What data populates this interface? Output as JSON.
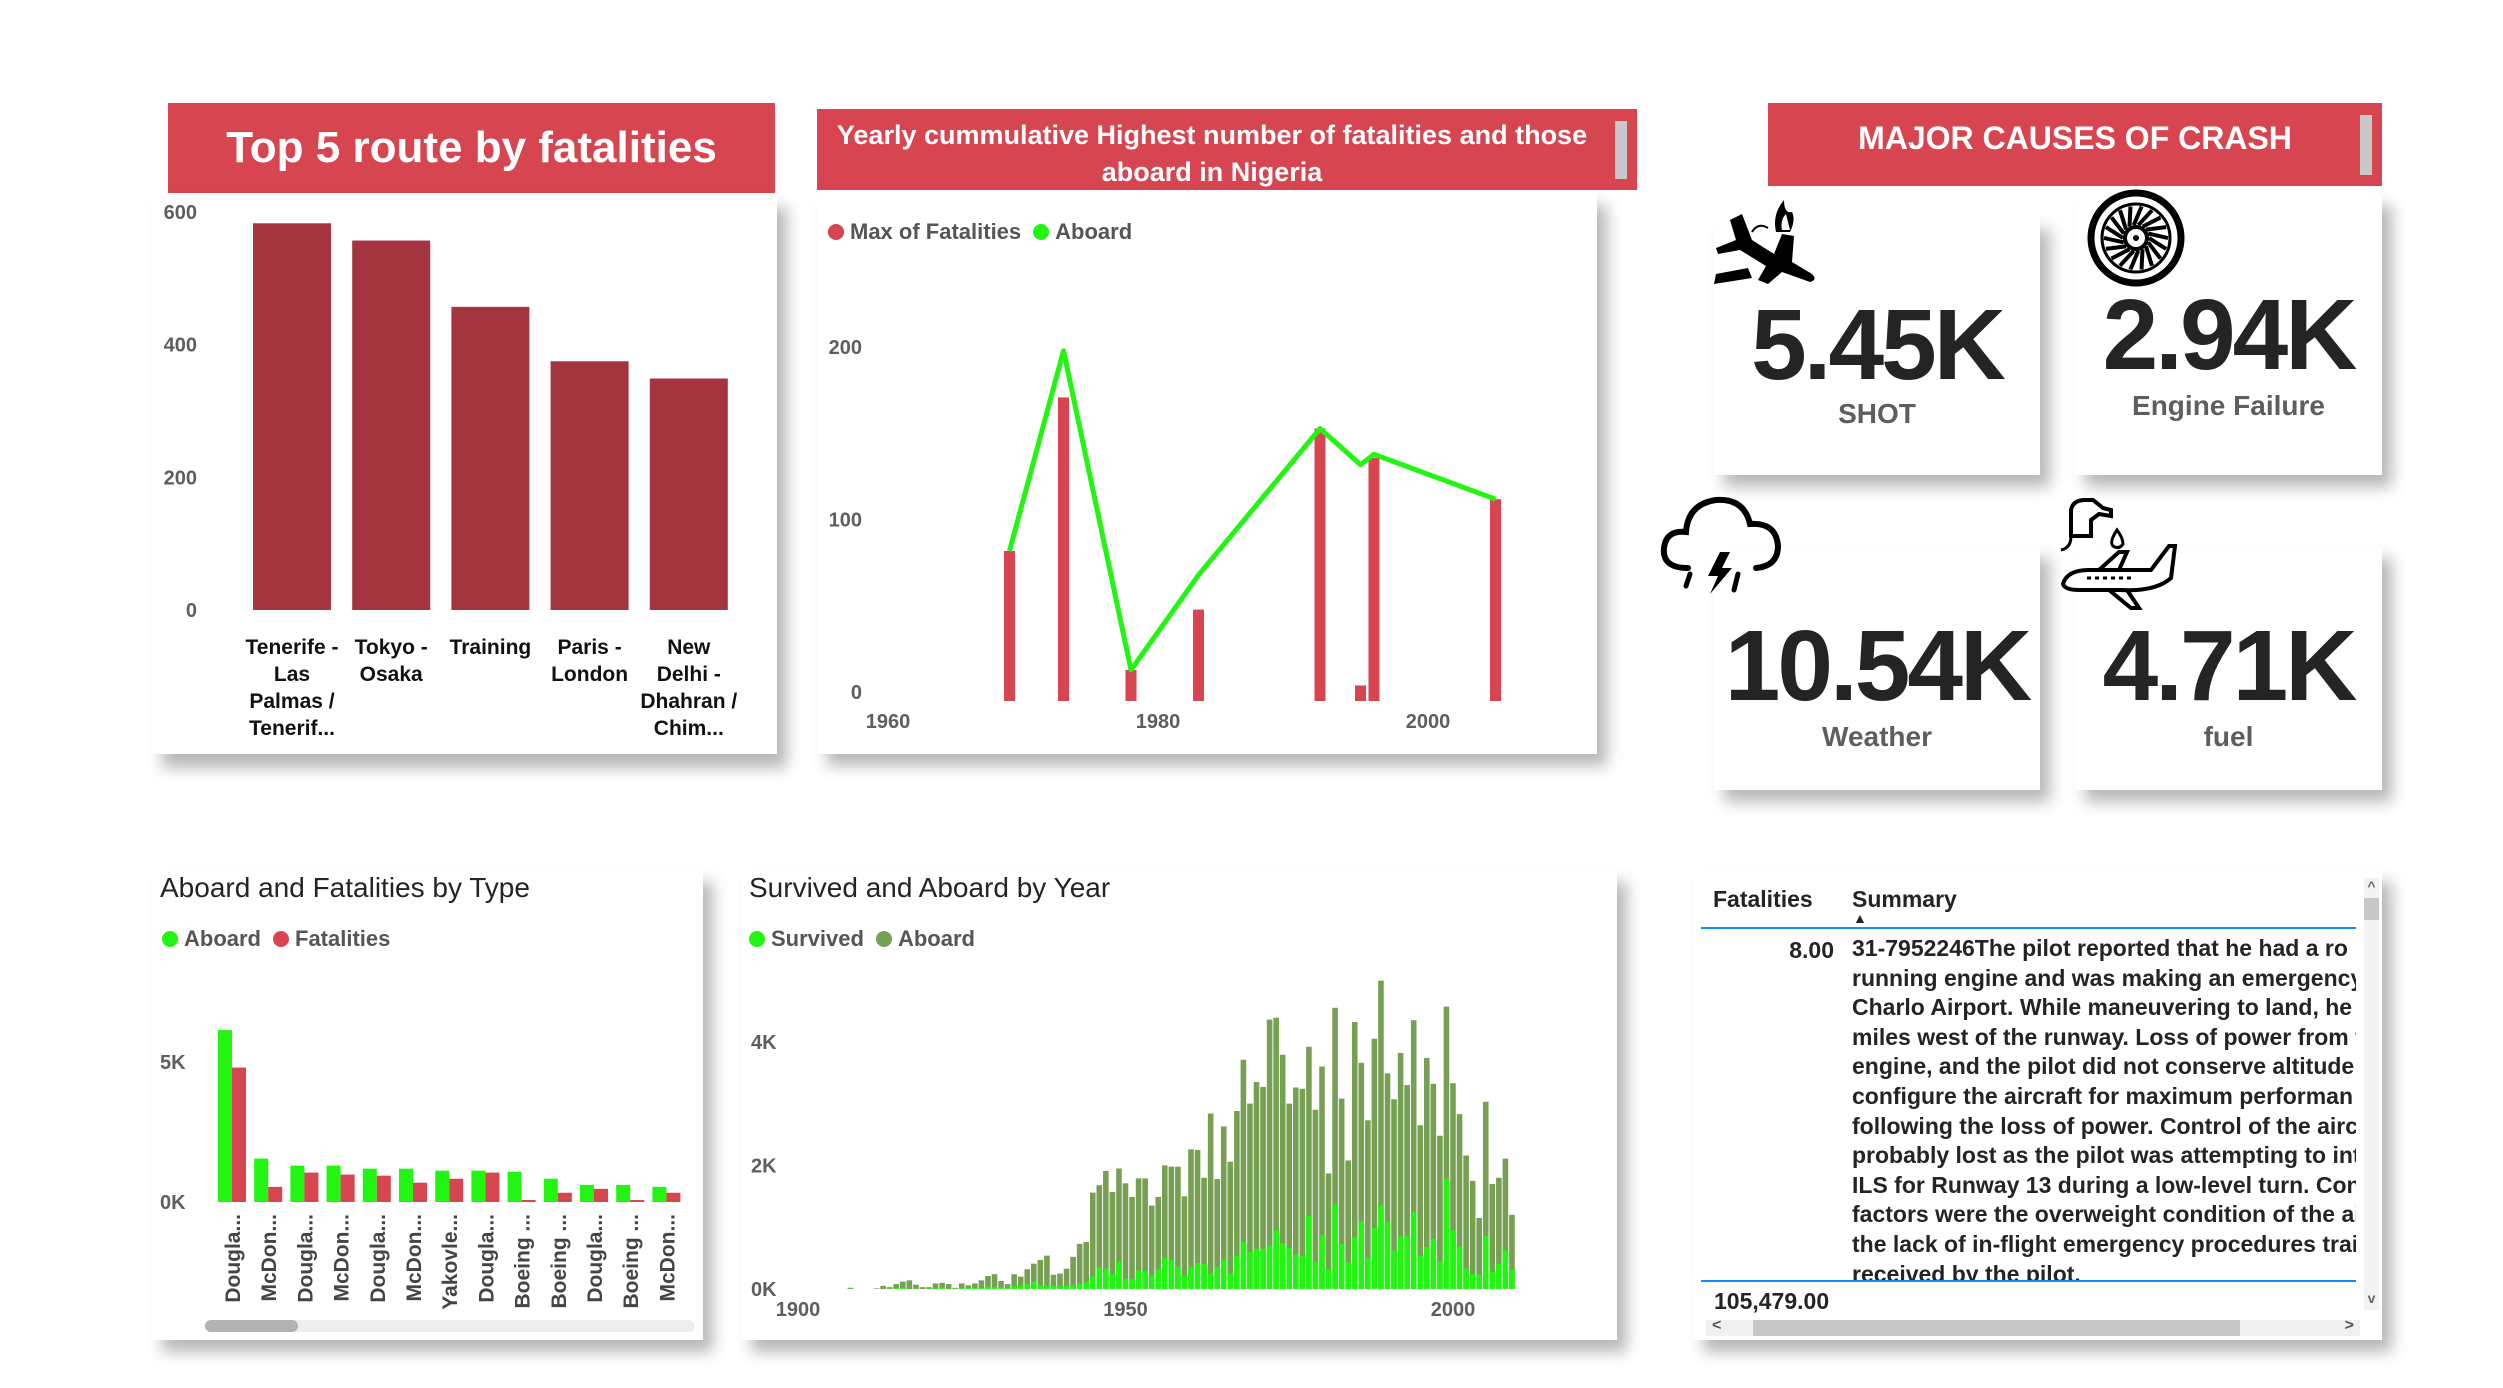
{
  "kpi_section": {
    "title": "MAJOR CAUSES OF CRASH",
    "cards": [
      {
        "value": "5.45K",
        "label": "SHOT",
        "icon": "crashed-plane-fire-icon"
      },
      {
        "value": "2.94K",
        "label": "Engine Failure",
        "icon": "jet-engine-turbine-icon"
      },
      {
        "value": "10.54K",
        "label": "Weather",
        "icon": "storm-cloud-icon"
      },
      {
        "value": "4.71K",
        "label": "fuel",
        "icon": "fuel-pump-plane-icon"
      }
    ]
  },
  "table": {
    "columns": [
      "Fatalities",
      "Summary"
    ],
    "sort_indicator": "▲",
    "rows": [
      {
        "fatalities": "8.00",
        "summary_lines": [
          "31-7952246The pilot reported that he had a ro",
          "running engine and was making an emergency",
          "Charlo Airport. While maneuvering to land, he",
          "miles west of the runway. Loss of power from t",
          "engine, and the pilot did not conserve altitude",
          "configure the aircraft for maximum performan",
          "following the loss of power. Control of the airc",
          "probably lost as the pilot was attempting to int",
          "ILS for Runway 13 during a low-level turn. Con",
          "factors were the overweight condition of the ai",
          "the lack of in-flight emergency procedures trai",
          "received by the pilot."
        ]
      }
    ],
    "total": "105,479.00"
  },
  "colors": {
    "header_red": "#D64550",
    "route_bar": "#A4343F",
    "fatalities_red": "#D64550",
    "aboard_green": "#22F511",
    "aboard_olive": "#77A055",
    "table_accent": "#118DFF"
  },
  "chart_data": [
    {
      "type": "bar",
      "title": "Top 5 route by fatalities",
      "categories": [
        "Tenerife - Las Palmas / Tenerif...",
        "Tokyo - Osaka",
        "Training",
        "Paris - London",
        "New Delhi - Dhahran / Chim..."
      ],
      "values": [
        583,
        557,
        457,
        375,
        349
      ],
      "yticks": [
        "0",
        "200",
        "400",
        "600"
      ],
      "ylim": [
        0,
        600
      ],
      "grid": false
    },
    {
      "type": "bar+line",
      "title": "Yearly cummulative Highest number of fatalities and those aboard in Nigeria",
      "legend": [
        "Max of Fatalities",
        "Aboard"
      ],
      "legend_position": "top-left",
      "x": [
        1969,
        1973,
        1978,
        1983,
        1992,
        1995,
        1996,
        2005
      ],
      "series": [
        {
          "name": "Max of Fatalities",
          "type": "bar",
          "values": [
            87,
            176,
            18,
            53,
            158,
            9,
            141,
            117
          ]
        },
        {
          "name": "Aboard",
          "type": "line",
          "values": [
            87,
            203,
            18,
            73,
            158,
            137,
            143,
            117
          ]
        }
      ],
      "xticks": [
        "1960",
        "1980",
        "2000"
      ],
      "yticks": [
        "0",
        "100",
        "200"
      ],
      "xlim": [
        1960,
        2010
      ],
      "ylim": [
        0,
        220
      ],
      "grid": false
    },
    {
      "type": "bar",
      "title": "Aboard and Fatalities by Type",
      "legend": [
        "Aboard",
        "Fatalities"
      ],
      "legend_position": "top-left",
      "categories": [
        "Dougla...",
        "McDon...",
        "Dougla...",
        "McDon...",
        "Dougla...",
        "McDon...",
        "Yakovle...",
        "Dougla...",
        "Boeing ...",
        "Boeing ...",
        "Dougla...",
        "Boeing ...",
        "McDon..."
      ],
      "series": [
        {
          "name": "Aboard",
          "values": [
            6140,
            1550,
            1300,
            1300,
            1190,
            1190,
            1120,
            1120,
            1080,
            830,
            610,
            610,
            540
          ]
        },
        {
          "name": "Fatalities",
          "values": [
            4800,
            540,
            1050,
            980,
            940,
            690,
            830,
            1050,
            70,
            330,
            470,
            70,
            330
          ]
        }
      ],
      "yticks": [
        "0K",
        "5K"
      ],
      "ylim": [
        0,
        6500
      ],
      "grid": false
    },
    {
      "type": "bar",
      "title": "Survived and Aboard by Year",
      "legend": [
        "Survived",
        "Aboard"
      ],
      "legend_position": "top-left",
      "x_start": 1908,
      "x_end": 2009,
      "series": [
        {
          "name": "Aboard",
          "values": [
            20,
            0,
            0,
            0,
            10,
            50,
            30,
            80,
            120,
            140,
            70,
            30,
            30,
            90,
            100,
            80,
            20,
            90,
            60,
            90,
            140,
            210,
            240,
            130,
            80,
            240,
            200,
            320,
            410,
            470,
            540,
            230,
            250,
            330,
            520,
            730,
            760,
            1560,
            1680,
            1910,
            1570,
            1950,
            1710,
            1490,
            1790,
            1790,
            1350,
            1490,
            2000,
            1980,
            1980,
            1500,
            2260,
            2250,
            1800,
            2840,
            1780,
            2630,
            2060,
            2880,
            3710,
            3000,
            3350,
            3270,
            4360,
            4390,
            3790,
            3000,
            3260,
            3240,
            3920,
            2900,
            3600,
            1870,
            4550,
            3080,
            2080,
            4320,
            3660,
            2730,
            4050,
            4990,
            3490,
            3070,
            3820,
            3300,
            4350,
            2650,
            3740,
            3320,
            2480,
            4570,
            3330,
            2830,
            2160,
            1750,
            1150,
            3030,
            1700,
            1800,
            2110,
            1200
          ]
        },
        {
          "name": "Survived",
          "values": [
            10,
            0,
            0,
            0,
            0,
            0,
            10,
            10,
            20,
            0,
            10,
            0,
            10,
            10,
            20,
            0,
            10,
            10,
            20,
            20,
            20,
            40,
            30,
            30,
            20,
            50,
            50,
            80,
            120,
            60,
            50,
            50,
            50,
            50,
            60,
            90,
            110,
            200,
            350,
            330,
            240,
            440,
            170,
            160,
            300,
            300,
            220,
            320,
            500,
            470,
            360,
            220,
            350,
            420,
            400,
            250,
            360,
            480,
            250,
            540,
            760,
            600,
            650,
            650,
            700,
            950,
            740,
            670,
            560,
            530,
            1180,
            440,
            870,
            320,
            1370,
            730,
            430,
            830,
            1100,
            510,
            990,
            1350,
            1090,
            620,
            850,
            860,
            1240,
            540,
            680,
            810,
            450,
            1780,
            950,
            690,
            330,
            240,
            230,
            860,
            280,
            410,
            630,
            310
          ]
        }
      ],
      "xticks": [
        "1900",
        "1950",
        "2000"
      ],
      "yticks": [
        "0K",
        "2K",
        "4K"
      ],
      "xlim": [
        1900,
        2010
      ],
      "ylim": [
        0,
        5000
      ],
      "grid": false
    }
  ]
}
